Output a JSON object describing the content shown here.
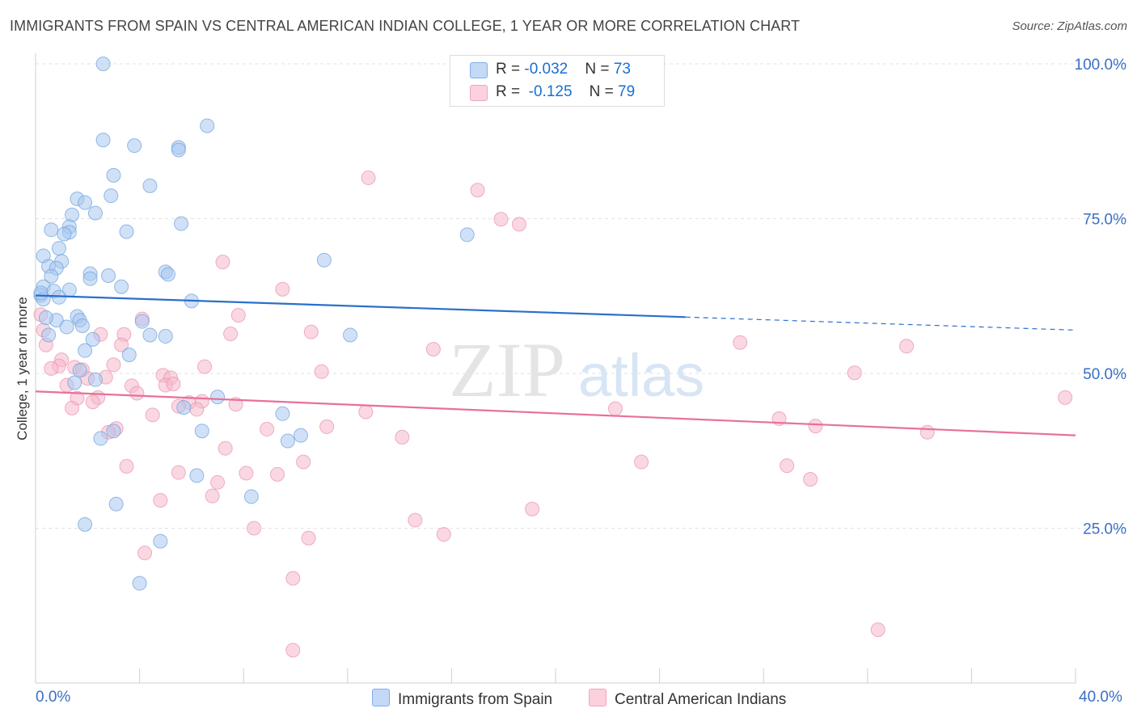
{
  "title": "IMMIGRANTS FROM SPAIN VS CENTRAL AMERICAN INDIAN COLLEGE, 1 YEAR OR MORE CORRELATION CHART",
  "source": "Source: ZipAtlas.com",
  "watermark": {
    "zip": "ZIP",
    "atlas": "atlas"
  },
  "legend": {
    "r_label": "R = ",
    "n_label": "N = ",
    "series": [
      {
        "r": "-0.032",
        "n": "73",
        "color": "#7fb0e8"
      },
      {
        "r": "-0.125",
        "n": "79",
        "color": "#f2a3bd"
      }
    ]
  },
  "colors": {
    "blue_point": "#a9c8f0",
    "blue_line": "#2a6fcc",
    "pink_point": "#f5b8cb",
    "pink_line": "#e8709a",
    "tick_text": "#3a6fc4"
  },
  "chart_data": {
    "type": "scatter",
    "title": "IMMIGRANTS FROM SPAIN VS CENTRAL AMERICAN INDIAN COLLEGE, 1 YEAR OR MORE CORRELATION CHART",
    "xlabel": "",
    "ylabel": "College, 1 year or more",
    "xlim": [
      0,
      40
    ],
    "ylim": [
      0,
      102
    ],
    "x_tick_labels": [
      "0.0%",
      "40.0%"
    ],
    "y_ticks": [
      25,
      50,
      75,
      100
    ],
    "y_tick_labels": [
      "25.0%",
      "50.0%",
      "75.0%",
      "100.0%"
    ],
    "grid": true,
    "legend_position": "top-center",
    "series": [
      {
        "name": "Immigrants from Spain",
        "color": "#a9c8f0",
        "trend": {
          "x": [
            0,
            25
          ],
          "y": [
            62.6,
            59.1
          ],
          "dashed_to": [
            40,
            57.0
          ]
        },
        "points": [
          [
            2.6,
            100.0
          ],
          [
            6.6,
            90.0
          ],
          [
            2.6,
            87.7
          ],
          [
            3.8,
            86.8
          ],
          [
            5.5,
            86.5
          ],
          [
            5.5,
            86.1
          ],
          [
            3.0,
            82.0
          ],
          [
            4.4,
            80.3
          ],
          [
            2.9,
            78.7
          ],
          [
            1.6,
            78.2
          ],
          [
            1.9,
            77.6
          ],
          [
            2.3,
            75.9
          ],
          [
            1.4,
            75.6
          ],
          [
            5.6,
            74.2
          ],
          [
            1.3,
            73.7
          ],
          [
            0.6,
            73.2
          ],
          [
            1.3,
            72.8
          ],
          [
            3.5,
            72.9
          ],
          [
            1.1,
            72.5
          ],
          [
            16.6,
            72.4
          ],
          [
            0.9,
            70.2
          ],
          [
            11.1,
            68.3
          ],
          [
            0.3,
            69.0
          ],
          [
            1.0,
            68.1
          ],
          [
            0.5,
            67.3
          ],
          [
            0.8,
            67.0
          ],
          [
            5.0,
            66.4
          ],
          [
            5.1,
            66.0
          ],
          [
            2.1,
            66.1
          ],
          [
            2.8,
            65.8
          ],
          [
            2.1,
            65.3
          ],
          [
            0.6,
            65.7
          ],
          [
            0.3,
            64.0
          ],
          [
            3.3,
            64.0
          ],
          [
            1.3,
            63.5
          ],
          [
            0.7,
            63.3
          ],
          [
            0.2,
            62.6
          ],
          [
            0.3,
            62.0
          ],
          [
            0.9,
            62.3
          ],
          [
            6.0,
            61.7
          ],
          [
            1.6,
            59.2
          ],
          [
            1.7,
            58.6
          ],
          [
            0.8,
            58.6
          ],
          [
            4.1,
            58.4
          ],
          [
            1.8,
            57.7
          ],
          [
            0.5,
            56.2
          ],
          [
            4.4,
            56.2
          ],
          [
            12.1,
            56.2
          ],
          [
            5.0,
            56.0
          ],
          [
            1.9,
            53.7
          ],
          [
            1.7,
            50.5
          ],
          [
            2.3,
            49.0
          ],
          [
            1.5,
            48.5
          ],
          [
            7.0,
            46.2
          ],
          [
            5.7,
            44.5
          ],
          [
            9.5,
            43.5
          ],
          [
            6.4,
            40.7
          ],
          [
            3.0,
            40.7
          ],
          [
            2.5,
            39.5
          ],
          [
            10.2,
            40.0
          ],
          [
            9.7,
            39.1
          ],
          [
            6.2,
            33.5
          ],
          [
            8.3,
            30.1
          ],
          [
            3.1,
            28.9
          ],
          [
            1.9,
            25.6
          ],
          [
            4.8,
            22.9
          ],
          [
            4.0,
            16.1
          ],
          [
            21.0,
            94.3
          ],
          [
            0.2,
            63.0
          ],
          [
            0.4,
            59.0
          ],
          [
            1.2,
            57.5
          ],
          [
            2.2,
            55.5
          ],
          [
            3.6,
            53.0
          ]
        ]
      },
      {
        "name": "Central American Indians",
        "color": "#f5b8cb",
        "trend": {
          "x": [
            0,
            40
          ],
          "y": [
            47.1,
            40.0
          ]
        },
        "points": [
          [
            0.2,
            59.5
          ],
          [
            0.4,
            54.6
          ],
          [
            1.0,
            52.2
          ],
          [
            0.9,
            51.2
          ],
          [
            0.6,
            50.8
          ],
          [
            1.5,
            51.0
          ],
          [
            1.8,
            50.6
          ],
          [
            2.5,
            56.3
          ],
          [
            3.4,
            56.3
          ],
          [
            3.3,
            54.6
          ],
          [
            4.1,
            58.8
          ],
          [
            3.0,
            51.4
          ],
          [
            2.0,
            49.2
          ],
          [
            1.2,
            48.1
          ],
          [
            2.4,
            46.1
          ],
          [
            1.6,
            46.0
          ],
          [
            2.2,
            45.4
          ],
          [
            1.4,
            44.4
          ],
          [
            3.7,
            48.0
          ],
          [
            3.9,
            46.8
          ],
          [
            4.9,
            49.7
          ],
          [
            5.2,
            49.3
          ],
          [
            5.0,
            48.1
          ],
          [
            5.3,
            48.3
          ],
          [
            6.5,
            51.1
          ],
          [
            5.9,
            45.3
          ],
          [
            6.4,
            45.5
          ],
          [
            7.7,
            45.0
          ],
          [
            6.2,
            44.2
          ],
          [
            5.5,
            44.7
          ],
          [
            4.5,
            43.3
          ],
          [
            7.5,
            56.4
          ],
          [
            7.8,
            59.4
          ],
          [
            7.2,
            68.0
          ],
          [
            9.5,
            63.6
          ],
          [
            10.6,
            56.7
          ],
          [
            11.0,
            50.3
          ],
          [
            12.7,
            43.8
          ],
          [
            11.2,
            41.4
          ],
          [
            8.9,
            41.0
          ],
          [
            10.3,
            35.7
          ],
          [
            9.3,
            33.7
          ],
          [
            8.1,
            33.9
          ],
          [
            7.0,
            32.4
          ],
          [
            7.3,
            37.9
          ],
          [
            5.5,
            34.0
          ],
          [
            6.8,
            30.2
          ],
          [
            4.8,
            29.5
          ],
          [
            3.5,
            35.0
          ],
          [
            3.1,
            41.1
          ],
          [
            2.8,
            40.5
          ],
          [
            4.2,
            21.0
          ],
          [
            8.4,
            25.0
          ],
          [
            10.5,
            23.4
          ],
          [
            9.9,
            16.9
          ],
          [
            9.9,
            5.3
          ],
          [
            12.8,
            81.6
          ],
          [
            17.0,
            79.6
          ],
          [
            17.9,
            74.9
          ],
          [
            18.6,
            74.1
          ],
          [
            15.3,
            53.9
          ],
          [
            14.1,
            39.7
          ],
          [
            14.6,
            26.3
          ],
          [
            15.7,
            24.0
          ],
          [
            19.1,
            28.1
          ],
          [
            22.3,
            44.3
          ],
          [
            23.3,
            35.7
          ],
          [
            27.1,
            55.0
          ],
          [
            28.6,
            42.7
          ],
          [
            28.9,
            35.1
          ],
          [
            30.0,
            41.5
          ],
          [
            29.8,
            32.9
          ],
          [
            31.5,
            50.1
          ],
          [
            33.5,
            54.4
          ],
          [
            34.3,
            40.5
          ],
          [
            39.6,
            46.1
          ],
          [
            32.4,
            8.6
          ],
          [
            0.3,
            57.0
          ],
          [
            2.7,
            49.4
          ]
        ]
      }
    ]
  },
  "bottom_legend": [
    "Immigrants from Spain",
    "Central American Indians"
  ]
}
